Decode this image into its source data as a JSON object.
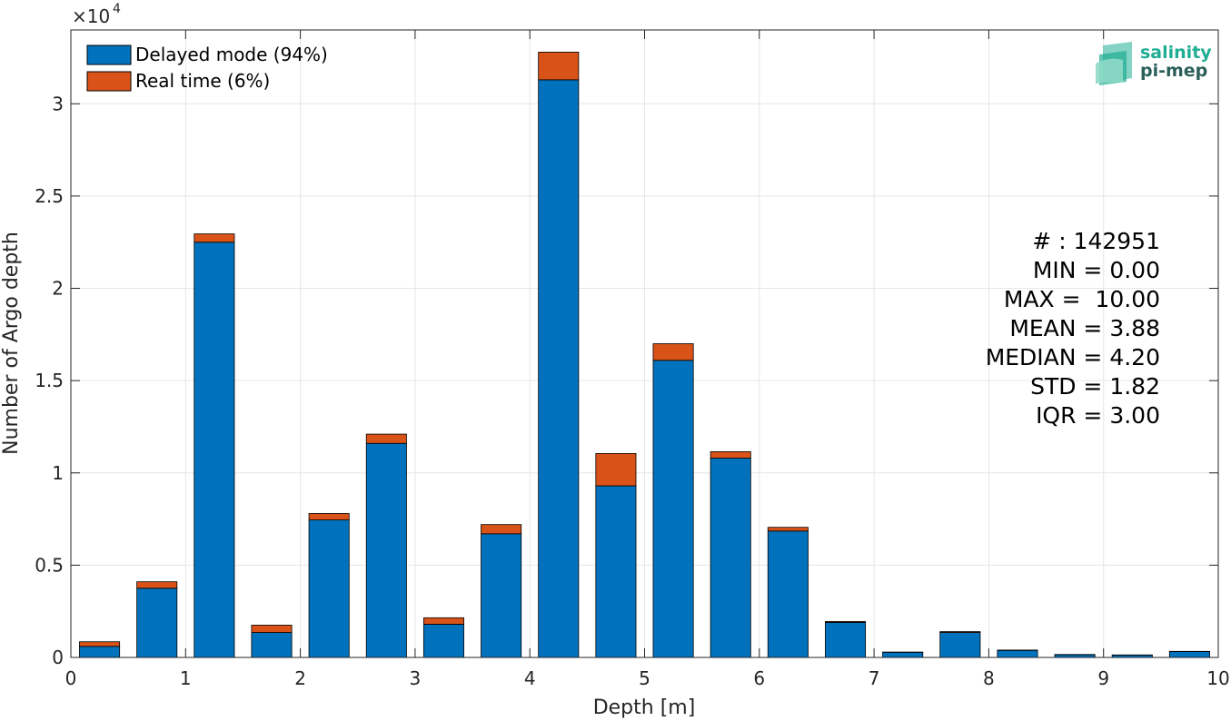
{
  "chart_data": {
    "type": "bar",
    "stacked": true,
    "xlabel": "Depth [m]",
    "ylabel": "Number of Argo depth",
    "y_exponent_label": "×10",
    "y_exponent_power": "4",
    "xlim": [
      0,
      10
    ],
    "ylim": [
      0,
      34000
    ],
    "x_ticks": [
      0,
      1,
      2,
      3,
      4,
      5,
      6,
      7,
      8,
      9,
      10
    ],
    "y_ticks": [
      0,
      5000,
      10000,
      15000,
      20000,
      25000,
      30000
    ],
    "y_tick_labels": [
      "0",
      "0.5",
      "1",
      "1.5",
      "2",
      "2.5",
      "3"
    ],
    "grid": true,
    "legend_position": "top-left",
    "bin_width": 0.5,
    "bin_centers": [
      0.25,
      0.75,
      1.25,
      1.75,
      2.25,
      2.75,
      3.25,
      3.75,
      4.25,
      4.75,
      5.25,
      5.75,
      6.25,
      6.75,
      7.25,
      7.75,
      8.25,
      8.75,
      9.25,
      9.75
    ],
    "series": [
      {
        "name": "Delayed mode (94%)",
        "color": "#0072bd",
        "values": [
          600,
          3750,
          22500,
          1350,
          7450,
          11600,
          1800,
          6700,
          31300,
          9300,
          16100,
          10800,
          6850,
          1900,
          280,
          1350,
          380,
          150,
          130,
          320
        ]
      },
      {
        "name": "Real time (6%)",
        "color": "#d95319",
        "values": [
          250,
          350,
          450,
          400,
          350,
          500,
          350,
          500,
          1500,
          1750,
          900,
          350,
          200,
          50,
          10,
          50,
          20,
          10,
          5,
          10
        ]
      }
    ],
    "stats": [
      "# : 142951",
      "MIN = 0.00",
      "MAX =  10.00",
      "MEAN = 3.88",
      "MEDIAN = 4.20",
      "STD = 1.82",
      "IQR = 3.00"
    ]
  },
  "logo": {
    "line1": "salinity",
    "line2": "pi-mep"
  },
  "colors": {
    "axis": "#262626",
    "grid": "#e6e6e6",
    "logo_teal": "#1fae93",
    "logo_dark": "#2b5f5a"
  }
}
